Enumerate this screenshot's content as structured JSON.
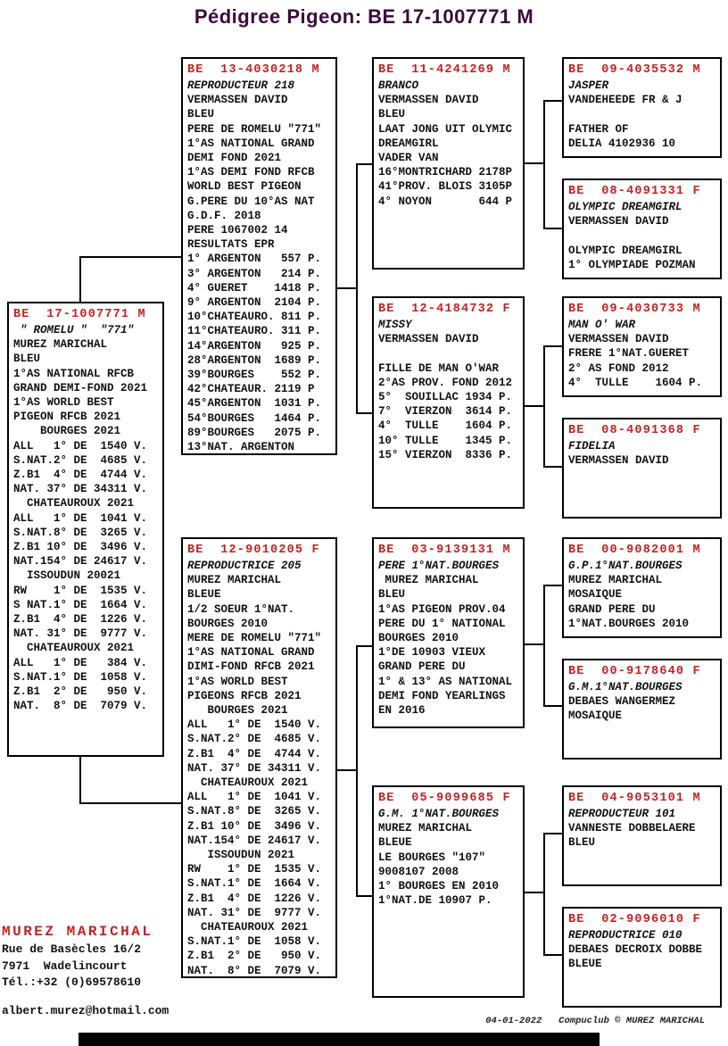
{
  "title": "Pédigree Pigeon: BE  17-1007771 M",
  "colors": {
    "code_red": "#c22323",
    "title_purple": "#3b0a3b",
    "text_black": "#121212"
  },
  "boxes": [
    {
      "id": "subject",
      "name": "box-subject",
      "lines": [
        [
          "code",
          "BE  17-1007771 M"
        ],
        [
          "it",
          " \" ROMELU \"  \"771\""
        ],
        [
          "n",
          "MUREZ MARICHAL"
        ],
        [
          "n",
          "BLEU"
        ],
        [
          "n",
          "1°AS NATIONAL RFCB"
        ],
        [
          "n",
          "GRAND DEMI-FOND 2021"
        ],
        [
          "n",
          "1°AS WORLD BEST"
        ],
        [
          "n",
          "PIGEON RFCB 2021"
        ],
        [
          "n",
          "    BOURGES 2021"
        ],
        [
          "n",
          "ALL   1° DE  1540 V."
        ],
        [
          "n",
          "S.NAT.2° DE  4685 V."
        ],
        [
          "n",
          "Z.B1  4° DE  4744 V."
        ],
        [
          "n",
          "NAT. 37° DE 34311 V."
        ],
        [
          "n",
          "  CHATEAUROUX 2021"
        ],
        [
          "n",
          "ALL   1° DE  1041 V."
        ],
        [
          "n",
          "S.NAT.8° DE  3265 V."
        ],
        [
          "n",
          "Z.B1 10° DE  3496 V."
        ],
        [
          "n",
          "NAT.154° DE 24617 V."
        ],
        [
          "n",
          "  ISSOUDUN 20021"
        ],
        [
          "n",
          "RW    1° DE  1535 V."
        ],
        [
          "n",
          "S NAT.1° DE  1664 V."
        ],
        [
          "n",
          "Z.B1  4° DE  1226 V."
        ],
        [
          "n",
          "NAT. 31° DE  9777 V."
        ],
        [
          "n",
          "  CHATEAUROUX 2021"
        ],
        [
          "n",
          "ALL   1° DE   384 V."
        ],
        [
          "n",
          "S.NAT.1° DE  1058 V."
        ],
        [
          "n",
          "Z.B1  2° DE   950 V."
        ],
        [
          "n",
          "NAT.  8° DE  7079 V."
        ]
      ]
    },
    {
      "id": "p1",
      "name": "box-sire",
      "lines": [
        [
          "code",
          "BE  13-4030218 M"
        ],
        [
          "it",
          "REPRODUCTEUR 218"
        ],
        [
          "n",
          "VERMASSEN DAVID"
        ],
        [
          "n",
          "BLEU"
        ],
        [
          "n",
          "PERE DE ROMELU \"771\""
        ],
        [
          "n",
          "1°AS NATIONAL GRAND"
        ],
        [
          "n",
          "DEMI FOND 2021"
        ],
        [
          "n",
          "1°AS DEMI FOND RFCB"
        ],
        [
          "n",
          "WORLD BEST PIGEON"
        ],
        [
          "n",
          "G.PERE DU 10°AS NAT"
        ],
        [
          "n",
          "G.D.F. 2018"
        ],
        [
          "n",
          "PERE 1067002 14"
        ],
        [
          "n",
          "RESULTATS EPR"
        ],
        [
          "n",
          "1° ARGENTON   557 P."
        ],
        [
          "n",
          "3° ARGENTON   214 P."
        ],
        [
          "n",
          "4° GUERET    1418 P."
        ],
        [
          "n",
          "9° ARGENTON  2104 P."
        ],
        [
          "n",
          "10°CHATEAURO. 811 P."
        ],
        [
          "n",
          "11°CHATEAURO. 311 P."
        ],
        [
          "n",
          "14°ARGENTON   925 P."
        ],
        [
          "n",
          "28°ARGENTON  1689 P."
        ],
        [
          "n",
          "39°BOURGES    552 P."
        ],
        [
          "n",
          "42°CHATEAUR. 2119 P"
        ],
        [
          "n",
          "45°ARGENTON  1031 P."
        ],
        [
          "n",
          "54°BOURGES   1464 P."
        ],
        [
          "n",
          "89°BOURGES   2075 P."
        ],
        [
          "n",
          "13°NAT. ARGENTON"
        ]
      ]
    },
    {
      "id": "p2",
      "name": "box-dam",
      "lines": [
        [
          "code",
          "BE  12-9010205 F"
        ],
        [
          "it",
          "REPRODUCTRICE 205"
        ],
        [
          "n",
          "MUREZ MARICHAL"
        ],
        [
          "n",
          "BLEUE"
        ],
        [
          "n",
          "1/2 SOEUR 1°NAT."
        ],
        [
          "n",
          "BOURGES 2010"
        ],
        [
          "n",
          "MERE DE ROMELU \"771\""
        ],
        [
          "n",
          "1°AS NATIONAL GRAND"
        ],
        [
          "n",
          "DIMI-FOND RFCB 2021"
        ],
        [
          "n",
          "1°AS WORLD BEST"
        ],
        [
          "n",
          "PIGEONS RFCB 2021"
        ],
        [
          "n",
          "   BOURGES 2021"
        ],
        [
          "n",
          "ALL   1° DE  1540 V."
        ],
        [
          "n",
          "S.NAT.2° DE  4685 V."
        ],
        [
          "n",
          "Z.B1  4° DE  4744 V."
        ],
        [
          "n",
          "NAT. 37° DE 34311 V."
        ],
        [
          "n",
          "  CHATEAUROUX 2021"
        ],
        [
          "n",
          "ALL   1° DE  1041 V."
        ],
        [
          "n",
          "S.NAT.8° DE  3265 V."
        ],
        [
          "n",
          "Z.B1 10° DE  3496 V."
        ],
        [
          "n",
          "NAT.154° DE 24617 V."
        ],
        [
          "n",
          "   ISSOUDUN 2021"
        ],
        [
          "n",
          "RW    1° DE  1535 V."
        ],
        [
          "n",
          "S.NAT.1° DE  1664 V."
        ],
        [
          "n",
          "Z.B1  4° DE  1226 V."
        ],
        [
          "n",
          "NAT. 31° DE  9777 V."
        ],
        [
          "n",
          "  CHATEAUROUX 2021"
        ],
        [
          "n",
          "S.NAT.1° DE  1058 V."
        ],
        [
          "n",
          "Z.B1  2° DE   950 V."
        ],
        [
          "n",
          "NAT.  8° DE  7079 V."
        ]
      ]
    },
    {
      "id": "g1",
      "name": "box-grandsire-paternal",
      "lines": [
        [
          "code",
          "BE  11-4241269 M"
        ],
        [
          "it",
          "BRANCO"
        ],
        [
          "n",
          "VERMASSEN DAVID"
        ],
        [
          "n",
          "BLEU"
        ],
        [
          "n",
          "LAAT JONG UIT OLYMIC"
        ],
        [
          "n",
          "DREAMGIRL"
        ],
        [
          "n",
          "VADER VAN"
        ],
        [
          "n",
          "16°MONTRICHARD 2178P"
        ],
        [
          "n",
          "41°PROV. BLOIS 3105P"
        ],
        [
          "n",
          "4° NOYON       644 P"
        ]
      ]
    },
    {
      "id": "g2",
      "name": "box-granddam-paternal",
      "lines": [
        [
          "code",
          "BE  12-4184732 F"
        ],
        [
          "it",
          "MISSY"
        ],
        [
          "n",
          "VERMASSEN DAVID"
        ],
        [
          "n",
          ""
        ],
        [
          "n",
          "FILLE DE MAN O'WAR"
        ],
        [
          "n",
          "2°AS PROV. FOND 2012"
        ],
        [
          "n",
          "5°  SOUILLAC 1934 P."
        ],
        [
          "n",
          "7°  VIERZON  3614 P."
        ],
        [
          "n",
          "4°  TULLE    1604 P."
        ],
        [
          "n",
          "10° TULLE    1345 P."
        ],
        [
          "n",
          "15° VIERZON  8336 P."
        ]
      ]
    },
    {
      "id": "g3",
      "name": "box-grandsire-maternal",
      "lines": [
        [
          "code",
          "BE  03-9139131 M"
        ],
        [
          "it",
          "PERE 1°NAT.BOURGES"
        ],
        [
          "n",
          " MUREZ MARICHAL"
        ],
        [
          "n",
          "BLEU"
        ],
        [
          "n",
          "1°AS PIGEON PROV.04"
        ],
        [
          "n",
          "PERE DU 1° NATIONAL"
        ],
        [
          "n",
          "BOURGES 2010"
        ],
        [
          "n",
          "1°DE 10903 VIEUX"
        ],
        [
          "n",
          "GRAND PERE DU"
        ],
        [
          "n",
          "1° & 13° AS NATIONAL"
        ],
        [
          "n",
          "DEMI FOND YEARLINGS"
        ],
        [
          "n",
          "EN 2016"
        ]
      ]
    },
    {
      "id": "g4",
      "name": "box-granddam-maternal",
      "lines": [
        [
          "code",
          "BE  05-9099685 F"
        ],
        [
          "it",
          "G.M. 1°NAT.BOURGES"
        ],
        [
          "n",
          "MUREZ MARICHAL"
        ],
        [
          "n",
          "BLEUE"
        ],
        [
          "n",
          "LE BOURGES \"107\""
        ],
        [
          "n",
          "9008107 2008"
        ],
        [
          "n",
          "1° BOURGES EN 2010"
        ],
        [
          "n",
          "1°NAT.DE 10907 P."
        ]
      ]
    },
    {
      "id": "gg1",
      "name": "box-great-grandparent-1",
      "lines": [
        [
          "code",
          "BE  09-4035532 M"
        ],
        [
          "it",
          "JASPER"
        ],
        [
          "n",
          "VANDEHEEDE FR & J"
        ],
        [
          "n",
          ""
        ],
        [
          "n",
          "FATHER OF"
        ],
        [
          "n",
          "DELIA 4102936 10"
        ]
      ]
    },
    {
      "id": "gg2",
      "name": "box-great-grandparent-2",
      "lines": [
        [
          "code",
          "BE  08-4091331 F"
        ],
        [
          "it",
          "OLYMPIC DREAMGIRL"
        ],
        [
          "n",
          "VERMASSEN DAVID"
        ],
        [
          "n",
          ""
        ],
        [
          "n",
          "OLYMPIC DREAMGIRL"
        ],
        [
          "n",
          "1° OLYMPIADE POZMAN"
        ]
      ]
    },
    {
      "id": "gg3",
      "name": "box-great-grandparent-3",
      "lines": [
        [
          "code",
          "BE  09-4030733 M"
        ],
        [
          "it",
          "MAN O' WAR"
        ],
        [
          "n",
          "VERMASSEN DAVID"
        ],
        [
          "n",
          "FRERE 1°NAT.GUERET"
        ],
        [
          "n",
          "2° AS FOND 2012"
        ],
        [
          "n",
          "4°  TULLE    1604 P."
        ]
      ]
    },
    {
      "id": "gg4",
      "name": "box-great-grandparent-4",
      "lines": [
        [
          "code",
          "BE  08-4091368 F"
        ],
        [
          "it",
          "FIDELIA"
        ],
        [
          "n",
          "VERMASSEN DAVID"
        ]
      ]
    },
    {
      "id": "gg5",
      "name": "box-great-grandparent-5",
      "lines": [
        [
          "code",
          "BE  00-9082001 M"
        ],
        [
          "it",
          "G.P.1°NAT.BOURGES"
        ],
        [
          "n",
          "MUREZ MARICHAL"
        ],
        [
          "n",
          "MOSAIQUE"
        ],
        [
          "n",
          "GRAND PERE DU"
        ],
        [
          "n",
          "1°NAT.BOURGES 2010"
        ]
      ]
    },
    {
      "id": "gg6",
      "name": "box-great-grandparent-6",
      "lines": [
        [
          "code",
          "BE  00-9178640 F"
        ],
        [
          "it",
          "G.M.1°NAT.BOURGES"
        ],
        [
          "n",
          "DEBAES WANGERMEZ"
        ],
        [
          "n",
          "MOSAIQUE"
        ]
      ]
    },
    {
      "id": "gg7",
      "name": "box-great-grandparent-7",
      "lines": [
        [
          "code",
          "BE  04-9053101 M"
        ],
        [
          "it",
          "REPRODUCTEUR 101"
        ],
        [
          "n",
          "VANNESTE DOBBELAERE"
        ],
        [
          "n",
          "BLEU"
        ]
      ]
    },
    {
      "id": "gg8",
      "name": "box-great-grandparent-8",
      "lines": [
        [
          "code",
          "BE  02-9096010 F"
        ],
        [
          "it",
          "REPRODUCTRICE 010"
        ],
        [
          "n",
          "DEBAES DECROIX DOBBE"
        ],
        [
          "n",
          "BLEUE"
        ]
      ]
    }
  ],
  "contact": {
    "name": "MUREZ MARICHAL",
    "address1": "Rue de Basècles 16/2",
    "address2": "7971  Wadelincourt",
    "phone": "Tél.:+32 (0)69578610",
    "email": "albert.murez@hotmail.com"
  },
  "footer": {
    "date": "04-01-2022",
    "credit": "Compuclub © MUREZ MARICHAL"
  }
}
